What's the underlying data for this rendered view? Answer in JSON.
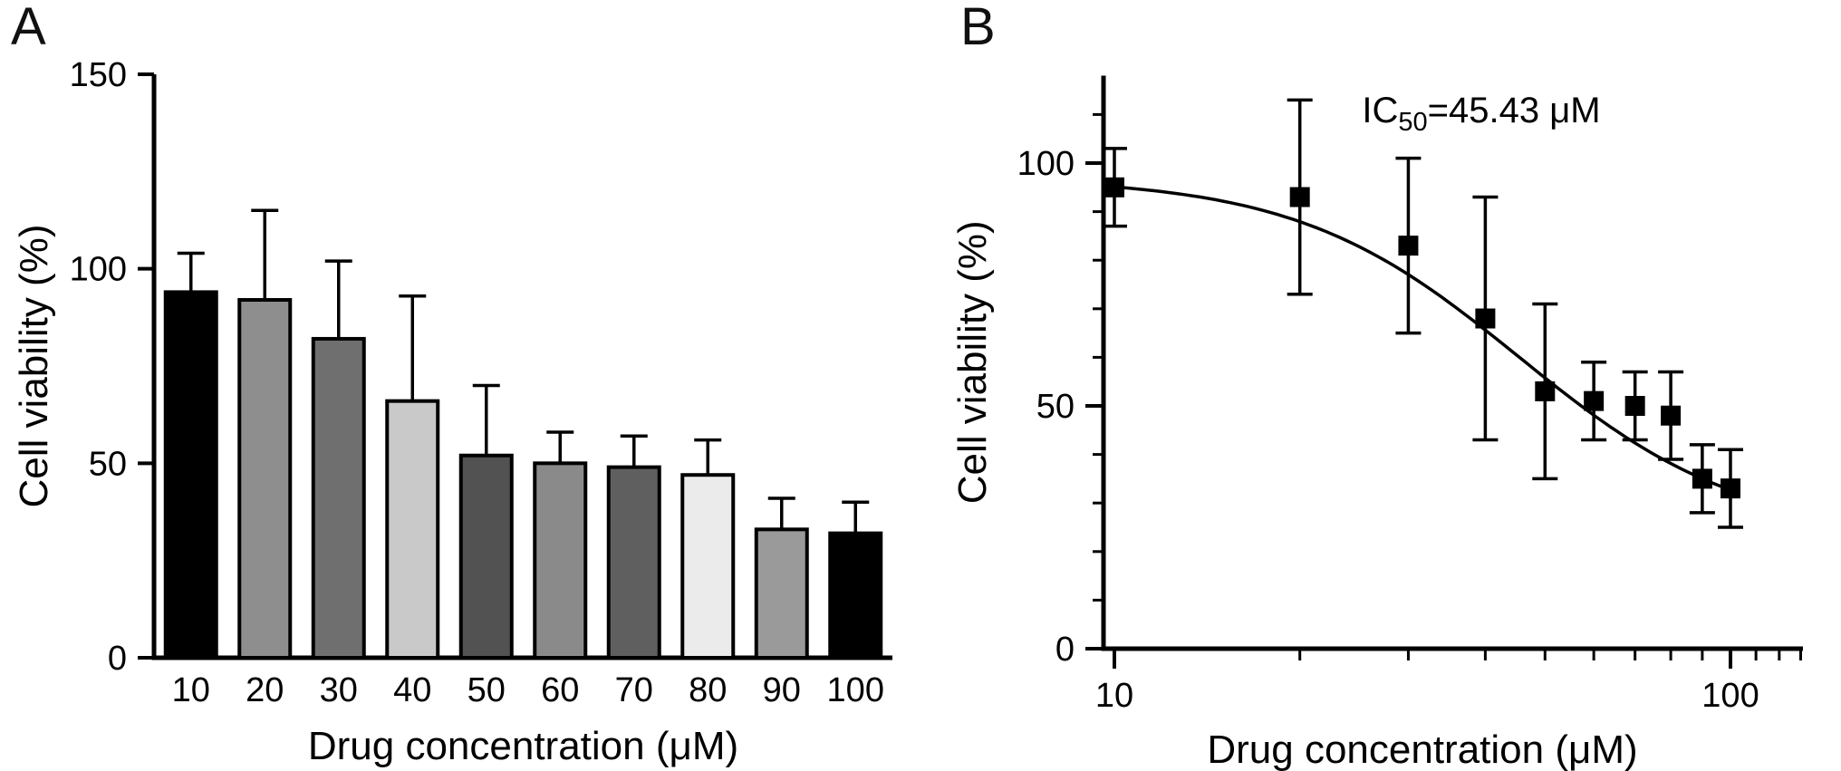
{
  "panels": [
    {
      "label": "A"
    },
    {
      "label": "B"
    }
  ],
  "colors": {
    "axis": "#000000",
    "text": "#111111",
    "background": "#ffffff",
    "marker": "#000000"
  },
  "chart_data": [
    {
      "type": "bar",
      "panel": "A",
      "title": "",
      "xlabel": "Drug concentration (μM)",
      "ylabel": "Cell viability (%)",
      "ylim": [
        0,
        150
      ],
      "yticks": [
        0,
        50,
        100,
        150
      ],
      "grid": false,
      "categories": [
        "10",
        "20",
        "30",
        "40",
        "50",
        "60",
        "70",
        "80",
        "90",
        "100"
      ],
      "values": [
        94,
        92,
        82,
        66,
        52,
        50,
        49,
        47,
        33,
        32
      ],
      "errors_up": [
        10,
        23,
        20,
        27,
        18,
        8,
        8,
        9,
        8,
        8
      ],
      "bar_fills": [
        "#000000",
        "#8e8e8e",
        "#6f6f6f",
        "#c9c9c9",
        "#525252",
        "#8a8a8a",
        "#5f5f5f",
        "#ebebeb",
        "#9a9a9a",
        "#000000"
      ],
      "bar_stroke": "#000000"
    },
    {
      "type": "scatter",
      "panel": "B",
      "title": "",
      "xscale": "log",
      "xlabel": "Drug concentration (μM)",
      "ylabel": "Cell viability (%)",
      "xlim": [
        10,
        130
      ],
      "ylim": [
        0,
        118
      ],
      "xticks": [
        10,
        100
      ],
      "xminorticks": [
        20,
        30,
        40,
        50,
        60,
        70,
        80,
        90,
        110,
        120,
        130
      ],
      "yticks": [
        0,
        50,
        100
      ],
      "grid": false,
      "x": [
        10,
        20,
        30,
        40,
        50,
        60,
        70,
        80,
        90,
        100
      ],
      "y": [
        95,
        93,
        83,
        68,
        53,
        51,
        50,
        48,
        35,
        33
      ],
      "errors": [
        8,
        20,
        18,
        25,
        18,
        8,
        7,
        9,
        7,
        8
      ],
      "marker": "square",
      "marker_color": "#000000",
      "legend": null,
      "annotation": {
        "prefix": "IC",
        "sub": "50",
        "suffix": "=45.43 μM"
      },
      "fit_curve": {
        "model": "4PL-logistic",
        "top": 97,
        "bottom": 23,
        "ic50": 45.43,
        "hill": 2.4
      }
    }
  ]
}
